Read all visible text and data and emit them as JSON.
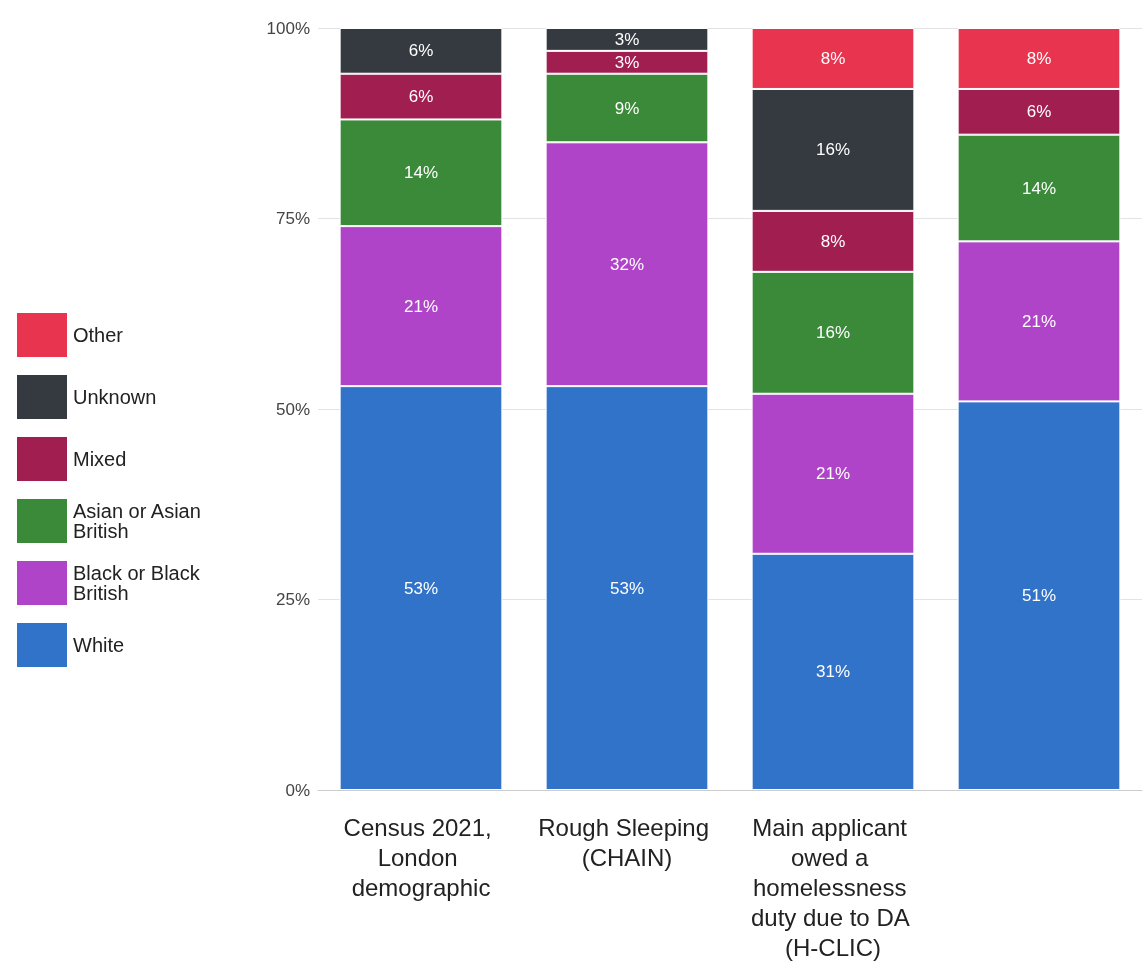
{
  "chart_data": {
    "type": "bar",
    "stacked": true,
    "categories": [
      "Census 2021, London demographic",
      "Rough Sleeping (CHAIN)",
      "Main applicant owed a homelessness duty due to DA (H-CLIC)",
      null
    ],
    "series": [
      {
        "name": "White",
        "color": "#3173c9",
        "values": [
          53,
          53,
          31,
          51
        ],
        "value_labels": [
          "53%",
          "53%",
          "31%",
          "51%"
        ]
      },
      {
        "name": "Black or Black British",
        "color": "#b044c8",
        "values": [
          21,
          32,
          21,
          21
        ],
        "value_labels": [
          "21%",
          "32%",
          "21%",
          "21%"
        ]
      },
      {
        "name": "Asian or Asian British",
        "color": "#3b8a3a",
        "values": [
          14,
          9,
          16,
          14
        ],
        "value_labels": [
          "14%",
          "9%",
          "16%",
          "14%"
        ]
      },
      {
        "name": "Mixed",
        "color": "#a01e50",
        "values": [
          6,
          3,
          8,
          6
        ],
        "value_labels": [
          "6%",
          "3%",
          "8%",
          "6%"
        ]
      },
      {
        "name": "Unknown",
        "color": "#343a40",
        "values": [
          6,
          3,
          16,
          null
        ],
        "value_labels": [
          "6%",
          "3%",
          "16%",
          null
        ]
      },
      {
        "name": "Other",
        "color": "#e8344e",
        "values": [
          null,
          null,
          8,
          8
        ],
        "value_labels": [
          null,
          null,
          "8%",
          "8%"
        ]
      }
    ],
    "ylim": [
      0,
      100
    ],
    "yticks": [
      {
        "value": 0,
        "label": "0%"
      },
      {
        "value": 25,
        "label": "25%"
      },
      {
        "value": 50,
        "label": "50%"
      },
      {
        "value": 75,
        "label": "75%"
      },
      {
        "value": 100,
        "label": "100%"
      }
    ],
    "grid": "y",
    "legend": "left"
  }
}
